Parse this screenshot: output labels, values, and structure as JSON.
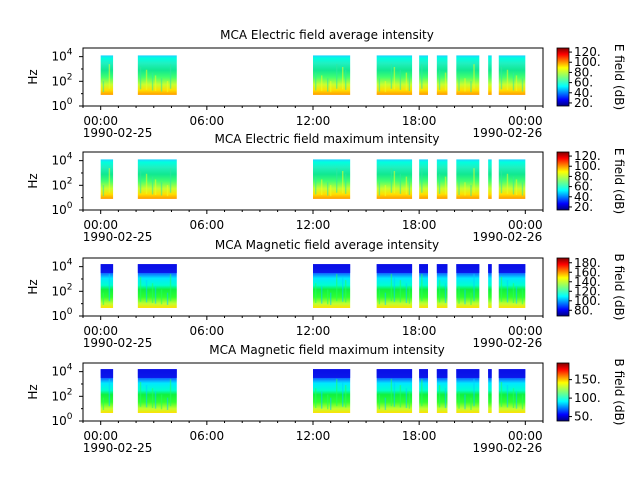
{
  "chart_data": [
    {
      "type": "heatmap",
      "title": "MCA  Electric field average intensity",
      "ylabel": "Hz",
      "y_ticks": [
        "10",
        "10",
        "10"
      ],
      "y_tick_exps": [
        "0",
        "2",
        "4"
      ],
      "x_ticks": [
        "00:00",
        "06:00",
        "12:00",
        "18:00",
        "00:00"
      ],
      "x_dates": [
        "1990-02-25",
        "1990-02-26"
      ],
      "xlim_hours": [
        -1,
        25
      ],
      "ylim_log10hz": [
        0,
        4.7
      ],
      "colorbar_label": "E field (dB)",
      "colorbar_ticks": [
        "20.",
        "40.",
        "60.",
        "80.",
        "100.",
        "120."
      ],
      "colorbar_values": [
        20,
        40,
        60,
        80,
        100,
        120
      ],
      "colorbar_range": [
        14,
        128
      ],
      "kind": "E",
      "data_intervals_hours": [
        [
          0.0,
          0.7
        ],
        [
          2.1,
          4.3
        ],
        [
          12.0,
          14.1
        ],
        [
          15.6,
          17.6
        ],
        [
          18.0,
          18.5
        ],
        [
          19.0,
          19.6
        ],
        [
          20.1,
          21.4
        ],
        [
          21.9,
          22.1
        ],
        [
          22.5,
          24.0
        ]
      ]
    },
    {
      "type": "heatmap",
      "title": "MCA  Electric field maximum intensity",
      "ylabel": "Hz",
      "y_ticks": [
        "10",
        "10",
        "10"
      ],
      "y_tick_exps": [
        "0",
        "2",
        "4"
      ],
      "x_ticks": [
        "00:00",
        "06:00",
        "12:00",
        "18:00",
        "00:00"
      ],
      "x_dates": [
        "1990-02-25",
        "1990-02-26"
      ],
      "xlim_hours": [
        -1,
        25
      ],
      "ylim_log10hz": [
        0,
        4.7
      ],
      "colorbar_label": "E field (dB)",
      "colorbar_ticks": [
        "20.",
        "40.",
        "60.",
        "80.",
        "100.",
        "120."
      ],
      "colorbar_values": [
        20,
        40,
        60,
        80,
        100,
        120
      ],
      "colorbar_range": [
        14,
        128
      ],
      "kind": "E",
      "data_intervals_hours": [
        [
          0.0,
          0.7
        ],
        [
          2.1,
          4.3
        ],
        [
          12.0,
          14.1
        ],
        [
          15.6,
          17.6
        ],
        [
          18.0,
          18.5
        ],
        [
          19.0,
          19.6
        ],
        [
          20.1,
          21.4
        ],
        [
          21.9,
          22.1
        ],
        [
          22.5,
          24.0
        ]
      ]
    },
    {
      "type": "heatmap",
      "title": "MCA  Magnetic field average intensity",
      "ylabel": "Hz",
      "y_ticks": [
        "10",
        "10",
        "10"
      ],
      "y_tick_exps": [
        "0",
        "2",
        "4"
      ],
      "x_ticks": [
        "00:00",
        "06:00",
        "12:00",
        "18:00",
        "00:00"
      ],
      "x_dates": [
        "1990-02-25",
        "1990-02-26"
      ],
      "xlim_hours": [
        -1,
        25
      ],
      "ylim_log10hz": [
        0,
        4.7
      ],
      "colorbar_label": "B field (dB)",
      "colorbar_ticks": [
        "80.",
        "100.",
        "120.",
        "140.",
        "160.",
        "180."
      ],
      "colorbar_values": [
        80,
        100,
        120,
        140,
        160,
        180
      ],
      "colorbar_range": [
        68,
        190
      ],
      "kind": "B",
      "data_intervals_hours": [
        [
          0.0,
          0.7
        ],
        [
          2.1,
          4.3
        ],
        [
          12.0,
          14.1
        ],
        [
          15.6,
          17.6
        ],
        [
          18.0,
          18.5
        ],
        [
          19.0,
          19.6
        ],
        [
          20.1,
          21.4
        ],
        [
          21.9,
          22.1
        ],
        [
          22.5,
          24.0
        ]
      ]
    },
    {
      "type": "heatmap",
      "title": "MCA  Magnetic field maximum intensity",
      "ylabel": "Hz",
      "y_ticks": [
        "10",
        "10",
        "10"
      ],
      "y_tick_exps": [
        "0",
        "2",
        "4"
      ],
      "x_ticks": [
        "00:00",
        "06:00",
        "12:00",
        "18:00",
        "00:00"
      ],
      "x_dates": [
        "1990-02-25",
        "1990-02-26"
      ],
      "xlim_hours": [
        -1,
        25
      ],
      "ylim_log10hz": [
        0,
        4.7
      ],
      "colorbar_label": "B field (dB)",
      "colorbar_ticks": [
        "50.",
        "100.",
        "150."
      ],
      "colorbar_values": [
        50,
        100,
        150
      ],
      "colorbar_range": [
        38,
        195
      ],
      "kind": "B",
      "data_intervals_hours": [
        [
          0.0,
          0.7
        ],
        [
          2.1,
          4.3
        ],
        [
          12.0,
          14.1
        ],
        [
          15.6,
          17.6
        ],
        [
          18.0,
          18.5
        ],
        [
          19.0,
          19.6
        ],
        [
          20.1,
          21.4
        ],
        [
          21.9,
          22.1
        ],
        [
          22.5,
          24.0
        ]
      ]
    }
  ]
}
